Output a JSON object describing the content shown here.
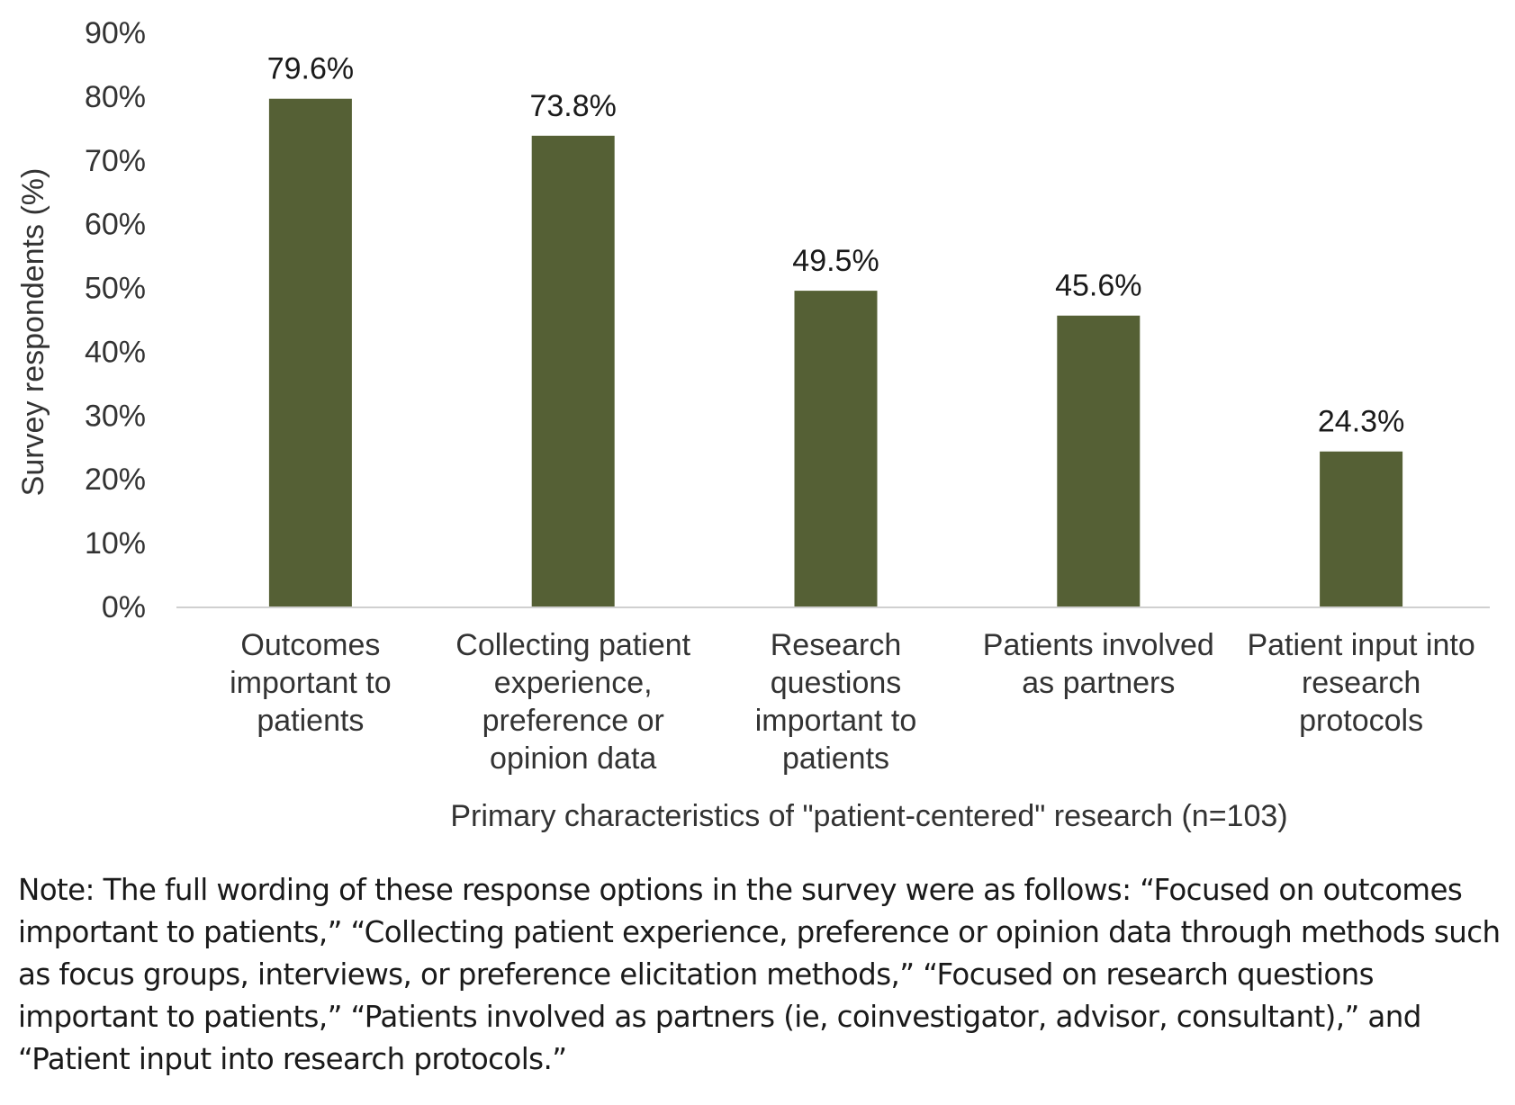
{
  "chart_data": {
    "type": "bar",
    "categories": [
      [
        "Outcomes",
        "important to",
        "patients"
      ],
      [
        "Collecting patient",
        "experience,",
        "preference or",
        "opinion data"
      ],
      [
        "Research",
        "questions",
        "important to",
        "patients"
      ],
      [
        "Patients involved",
        "as partners"
      ],
      [
        "Patient input into",
        "research",
        "protocols"
      ]
    ],
    "values": [
      79.6,
      73.8,
      49.5,
      45.6,
      24.3
    ],
    "data_labels": [
      "79.6%",
      "73.8%",
      "49.5%",
      "45.6%",
      "24.3%"
    ],
    "title": "",
    "xlabel": "Primary characteristics of \"patient-centered\" research (n=103)",
    "ylabel": "Survey respondents (%)",
    "ylim": [
      0,
      90
    ],
    "yticks": [
      0,
      10,
      20,
      30,
      40,
      50,
      60,
      70,
      80,
      90
    ],
    "ytick_labels": [
      "0%",
      "10%",
      "20%",
      "30%",
      "40%",
      "50%",
      "60%",
      "70%",
      "80%",
      "90%"
    ],
    "grid": false,
    "legend": "none",
    "bar_color": "#556035",
    "axis_color": "#d0d0d0"
  },
  "note": {
    "text": "Note: The full wording of these response options in the survey were as follows: “Focused on outcomes important to patients,” “Collecting patient experience, preference or opinion data through methods such as focus groups, interviews, or preference elicitation methods,” “Focused on research questions important to patients,” “Patients involved as partners (ie, coinvestigator, advisor, consultant),” and “Patient input into research protocols.”"
  }
}
